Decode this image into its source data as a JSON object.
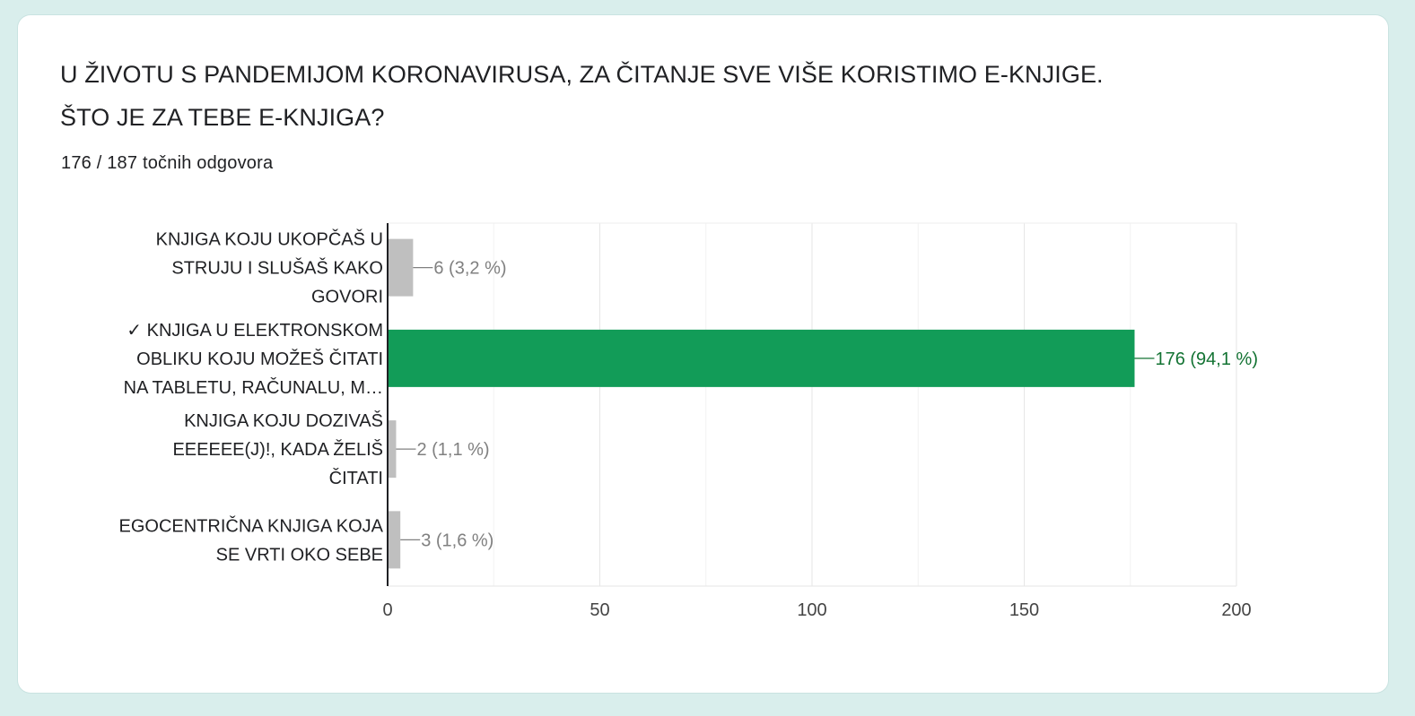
{
  "question": {
    "title_line1": "U ŽIVOTU S PANDEMIJOM KORONAVIRUSA, ZA ČITANJE SVE VIŠE KORISTIMO E-KNJIGE.",
    "title_line2": "ŠTO JE ZA TEBE E-KNJIGA?",
    "summary": "176 / 187 točnih odgovora"
  },
  "colors": {
    "correct": "#129c58",
    "incorrect": "#bfbfbf",
    "correct_label": "#137333",
    "incorrect_label": "#808080"
  },
  "chart_data": {
    "type": "bar",
    "orientation": "horizontal",
    "categories": [
      [
        "KNJIGA KOJU UKOPČAŠ U",
        "STRUJU I SLUŠAŠ KAKO",
        "GOVORI"
      ],
      [
        "✓ KNJIGA U ELEKTRONSKOM",
        "OBLIKU KOJU MOŽEŠ ČITATI",
        "NA TABLETU, RAČUNALU, M…"
      ],
      [
        "KNJIGA KOJU DOZIVAŠ",
        "EEEEEE(J)!, KADA ŽELIŠ",
        "ČITATI"
      ],
      [
        "EGOCENTRIČNA KNJIGA KOJA",
        "SE VRTI OKO SEBE"
      ]
    ],
    "values": [
      6,
      176,
      2,
      3
    ],
    "value_labels": [
      "6 (3,2 %)",
      "176 (94,1 %)",
      "2 (1,1 %)",
      "3 (1,6 %)"
    ],
    "correct": [
      false,
      true,
      false,
      false
    ],
    "xlim": [
      0,
      200
    ],
    "xticks": [
      0,
      50,
      100,
      150,
      200
    ],
    "grid": true
  }
}
